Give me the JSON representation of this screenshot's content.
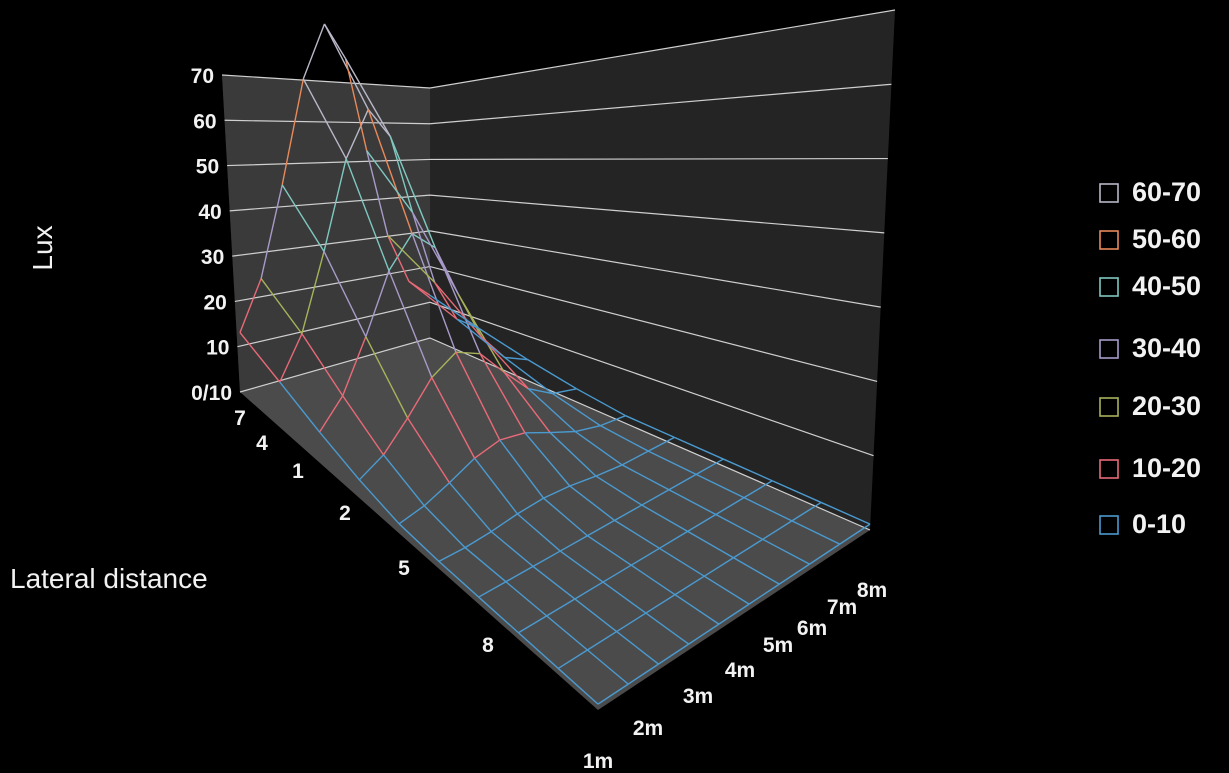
{
  "chart_data": {
    "type": "surface",
    "zlabel": "Lux",
    "ylabel": "Lateral distance",
    "xlabel": "",
    "zlim": [
      0,
      70
    ],
    "z_ticks": [
      "0/10",
      "10",
      "20",
      "30",
      "40",
      "50",
      "60",
      "70"
    ],
    "lateral_ticks": [
      "7",
      "4",
      "1",
      "2",
      "5",
      "8"
    ],
    "distance_ticks": [
      "1m",
      "2m",
      "3m",
      "4m",
      "5m",
      "6m",
      "7m",
      "8m"
    ],
    "grid": true,
    "legend_position": "right",
    "bands": [
      {
        "label": "60-70",
        "color": "#b8b8c8"
      },
      {
        "label": "50-60",
        "color": "#e8895a"
      },
      {
        "label": "40-50",
        "color": "#7fc8c0"
      },
      {
        "label": "30-40",
        "color": "#a89ac8"
      },
      {
        "label": "20-30",
        "color": "#a8b25a"
      },
      {
        "label": "10-20",
        "color": "#e86a78"
      },
      {
        "label": "0-10",
        "color": "#4a9ad0"
      }
    ],
    "surface_note": "Illuminance peaks at about 68 lux near 1m distance and lateral 1, falling to under 10 lux by 8m.",
    "surface_peak_lux": 68
  }
}
